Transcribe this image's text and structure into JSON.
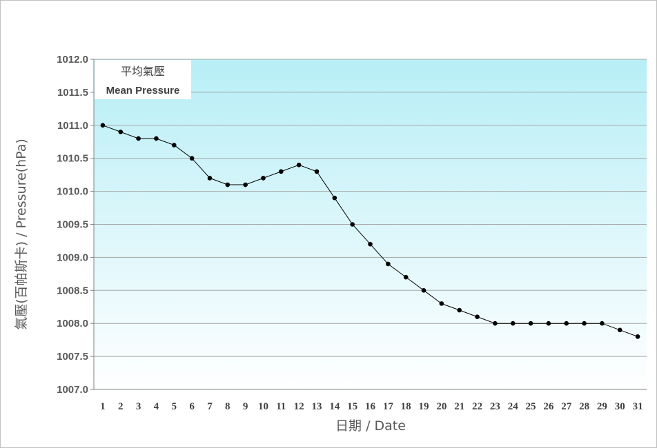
{
  "chart_data": {
    "type": "line",
    "title_zh": "平均氣壓",
    "title_en": "Mean Pressure",
    "xlabel": "日期 / Date",
    "ylabel": "氣壓(百帕斯卡) / Pressure(hPa)",
    "ylim": [
      1007.0,
      1012.0
    ],
    "ytick_step": 0.5,
    "yticks": [
      "1007.0",
      "1007.5",
      "1008.0",
      "1008.5",
      "1009.0",
      "1009.5",
      "1010.0",
      "1010.5",
      "1011.0",
      "1011.5",
      "1012.0"
    ],
    "x": [
      1,
      2,
      3,
      4,
      5,
      6,
      7,
      8,
      9,
      10,
      11,
      12,
      13,
      14,
      15,
      16,
      17,
      18,
      19,
      20,
      21,
      22,
      23,
      24,
      25,
      26,
      27,
      28,
      29,
      30,
      31
    ],
    "values": [
      1011.0,
      1010.9,
      1010.8,
      1010.8,
      1010.7,
      1010.5,
      1010.2,
      1010.1,
      1010.1,
      1010.2,
      1010.3,
      1010.4,
      1010.3,
      1009.9,
      1009.5,
      1009.2,
      1008.9,
      1008.7,
      1008.5,
      1008.3,
      1008.2,
      1008.1,
      1008.0,
      1008.0,
      1008.0,
      1008.0,
      1008.0,
      1008.0,
      1008.0,
      1007.9,
      1007.8
    ],
    "grid": true,
    "legend": "top-left",
    "colors": {
      "line": "#000000",
      "marker": "#000000",
      "grid": "#a6a6a6",
      "plot_top": "#b7eef6",
      "plot_bottom": "#ffffff"
    }
  }
}
